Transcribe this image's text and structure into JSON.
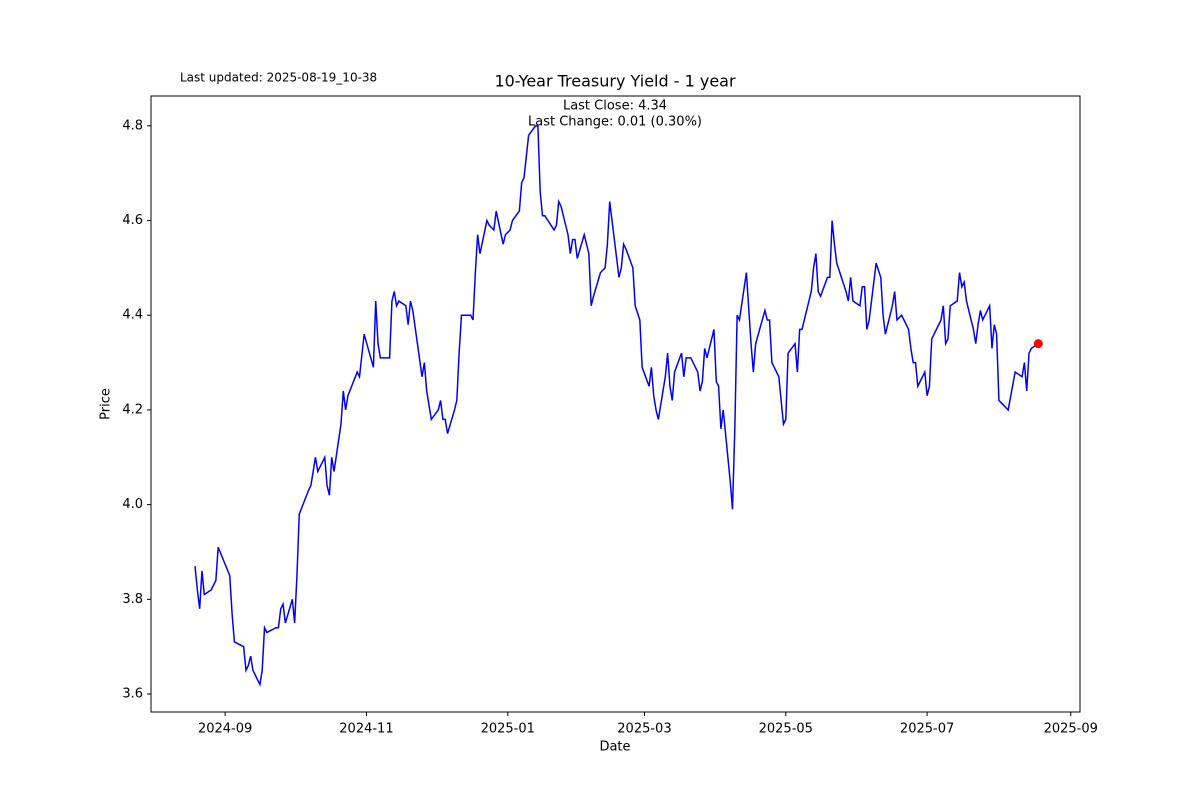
{
  "chart_data": {
    "type": "line",
    "title": "10-Year Treasury Yield - 1 year",
    "last_updated": "Last updated: 2025-08-19_10-38",
    "annotations": [
      "Last Close: 4.34",
      "Last Change: 0.01 (0.30%)"
    ],
    "x_label": "Date",
    "y_label": "Price",
    "x": [
      "2024-08-19",
      "2024-08-20",
      "2024-08-21",
      "2024-08-22",
      "2024-08-23",
      "2024-08-26",
      "2024-08-28",
      "2024-08-29",
      "2024-09-03",
      "2024-09-04",
      "2024-09-05",
      "2024-09-09",
      "2024-09-10",
      "2024-09-11",
      "2024-09-12",
      "2024-09-13",
      "2024-09-16",
      "2024-09-17",
      "2024-09-18",
      "2024-09-19",
      "2024-09-23",
      "2024-09-24",
      "2024-09-25",
      "2024-09-26",
      "2024-09-27",
      "2024-09-30",
      "2024-10-01",
      "2024-10-02",
      "2024-10-03",
      "2024-10-07",
      "2024-10-08",
      "2024-10-10",
      "2024-10-11",
      "2024-10-14",
      "2024-10-15",
      "2024-10-16",
      "2024-10-17",
      "2024-10-18",
      "2024-10-21",
      "2024-10-22",
      "2024-10-23",
      "2024-10-24",
      "2024-10-28",
      "2024-10-29",
      "2024-10-31",
      "2024-11-04",
      "2024-11-05",
      "2024-11-06",
      "2024-11-07",
      "2024-11-11",
      "2024-11-12",
      "2024-11-13",
      "2024-11-14",
      "2024-11-15",
      "2024-11-18",
      "2024-11-19",
      "2024-11-20",
      "2024-11-21",
      "2024-11-25",
      "2024-11-26",
      "2024-11-27",
      "2024-11-29",
      "2024-12-02",
      "2024-12-03",
      "2024-12-04",
      "2024-12-05",
      "2024-12-06",
      "2024-12-09",
      "2024-12-10",
      "2024-12-11",
      "2024-12-12",
      "2024-12-16",
      "2024-12-17",
      "2024-12-18",
      "2024-12-19",
      "2024-12-20",
      "2024-12-23",
      "2024-12-24",
      "2024-12-26",
      "2024-12-27",
      "2024-12-30",
      "2024-12-31",
      "2025-01-02",
      "2025-01-03",
      "2025-01-06",
      "2025-01-07",
      "2025-01-08",
      "2025-01-10",
      "2025-01-13",
      "2025-01-14",
      "2025-01-15",
      "2025-01-16",
      "2025-01-17",
      "2025-01-21",
      "2025-01-22",
      "2025-01-23",
      "2025-01-24",
      "2025-01-27",
      "2025-01-28",
      "2025-01-29",
      "2025-01-30",
      "2025-01-31",
      "2025-02-03",
      "2025-02-04",
      "2025-02-05",
      "2025-02-06",
      "2025-02-07",
      "2025-02-10",
      "2025-02-12",
      "2025-02-13",
      "2025-02-14",
      "2025-02-18",
      "2025-02-19",
      "2025-02-20",
      "2025-02-21",
      "2025-02-24",
      "2025-02-25",
      "2025-02-27",
      "2025-02-28",
      "2025-03-03",
      "2025-03-04",
      "2025-03-05",
      "2025-03-06",
      "2025-03-07",
      "2025-03-10",
      "2025-03-11",
      "2025-03-12",
      "2025-03-13",
      "2025-03-14",
      "2025-03-17",
      "2025-03-18",
      "2025-03-19",
      "2025-03-21",
      "2025-03-24",
      "2025-03-25",
      "2025-03-26",
      "2025-03-27",
      "2025-03-28",
      "2025-03-31",
      "2025-04-01",
      "2025-04-02",
      "2025-04-03",
      "2025-04-04",
      "2025-04-07",
      "2025-04-08",
      "2025-04-09",
      "2025-04-10",
      "2025-04-11",
      "2025-04-14",
      "2025-04-16",
      "2025-04-17",
      "2025-04-18",
      "2025-04-22",
      "2025-04-23",
      "2025-04-24",
      "2025-04-25",
      "2025-04-28",
      "2025-04-29",
      "2025-04-30",
      "2025-05-01",
      "2025-05-02",
      "2025-05-05",
      "2025-05-06",
      "2025-05-07",
      "2025-05-08",
      "2025-05-12",
      "2025-05-13",
      "2025-05-14",
      "2025-05-15",
      "2025-05-16",
      "2025-05-19",
      "2025-05-20",
      "2025-05-21",
      "2025-05-22",
      "2025-05-23",
      "2025-05-27",
      "2025-05-28",
      "2025-05-29",
      "2025-05-30",
      "2025-06-02",
      "2025-06-03",
      "2025-06-04",
      "2025-06-05",
      "2025-06-06",
      "2025-06-09",
      "2025-06-11",
      "2025-06-12",
      "2025-06-13",
      "2025-06-16",
      "2025-06-17",
      "2025-06-18",
      "2025-06-20",
      "2025-06-23",
      "2025-06-24",
      "2025-06-25",
      "2025-06-26",
      "2025-06-27",
      "2025-06-30",
      "2025-07-01",
      "2025-07-02",
      "2025-07-03",
      "2025-07-07",
      "2025-07-08",
      "2025-07-09",
      "2025-07-10",
      "2025-07-11",
      "2025-07-14",
      "2025-07-15",
      "2025-07-16",
      "2025-07-17",
      "2025-07-18",
      "2025-07-21",
      "2025-07-22",
      "2025-07-23",
      "2025-07-24",
      "2025-07-25",
      "2025-07-28",
      "2025-07-29",
      "2025-07-30",
      "2025-07-31",
      "2025-08-01",
      "2025-08-05",
      "2025-08-08",
      "2025-08-11",
      "2025-08-12",
      "2025-08-13",
      "2025-08-14",
      "2025-08-15",
      "2025-08-18"
    ],
    "series": [
      {
        "name": "10-Year Treasury Yield",
        "color": "#0000ff",
        "marker_color": "#ff0000",
        "values": [
          3.87,
          3.82,
          3.78,
          3.86,
          3.81,
          3.82,
          3.84,
          3.91,
          3.85,
          3.77,
          3.71,
          3.7,
          3.65,
          3.66,
          3.68,
          3.65,
          3.62,
          3.65,
          3.74,
          3.73,
          3.74,
          3.74,
          3.78,
          3.79,
          3.75,
          3.8,
          3.75,
          3.85,
          3.98,
          4.03,
          4.04,
          4.1,
          4.07,
          4.1,
          4.04,
          4.02,
          4.1,
          4.07,
          4.17,
          4.24,
          4.2,
          4.23,
          4.28,
          4.27,
          4.36,
          4.29,
          4.43,
          4.34,
          4.31,
          4.31,
          4.43,
          4.45,
          4.42,
          4.43,
          4.42,
          4.38,
          4.43,
          4.41,
          4.27,
          4.3,
          4.24,
          4.18,
          4.2,
          4.22,
          4.18,
          4.18,
          4.15,
          4.2,
          4.22,
          4.32,
          4.4,
          4.4,
          4.39,
          4.49,
          4.57,
          4.53,
          4.6,
          4.59,
          4.58,
          4.62,
          4.55,
          4.57,
          4.58,
          4.6,
          4.62,
          4.68,
          4.69,
          4.78,
          4.8,
          4.8,
          4.66,
          4.61,
          4.61,
          4.58,
          4.59,
          4.64,
          4.63,
          4.57,
          4.53,
          4.56,
          4.56,
          4.52,
          4.57,
          4.55,
          4.53,
          4.42,
          4.44,
          4.49,
          4.5,
          4.55,
          4.64,
          4.48,
          4.5,
          4.55,
          4.54,
          4.5,
          4.42,
          4.39,
          4.29,
          4.25,
          4.29,
          4.23,
          4.2,
          4.18,
          4.27,
          4.32,
          4.25,
          4.22,
          4.28,
          4.32,
          4.27,
          4.31,
          4.31,
          4.28,
          4.24,
          4.26,
          4.33,
          4.31,
          4.37,
          4.26,
          4.25,
          4.16,
          4.2,
          4.05,
          3.99,
          4.16,
          4.4,
          4.39,
          4.49,
          4.34,
          4.28,
          4.34,
          4.41,
          4.39,
          4.39,
          4.3,
          4.27,
          4.22,
          4.17,
          4.18,
          4.32,
          4.34,
          4.28,
          4.37,
          4.37,
          4.45,
          4.5,
          4.53,
          4.45,
          4.44,
          4.48,
          4.48,
          4.6,
          4.55,
          4.51,
          4.45,
          4.43,
          4.48,
          4.43,
          4.42,
          4.46,
          4.46,
          4.37,
          4.39,
          4.51,
          4.48,
          4.4,
          4.36,
          4.42,
          4.45,
          4.39,
          4.4,
          4.37,
          4.33,
          4.3,
          4.3,
          4.25,
          4.28,
          4.23,
          4.25,
          4.35,
          4.39,
          4.42,
          4.34,
          4.35,
          4.42,
          4.43,
          4.49,
          4.46,
          4.47,
          4.43,
          4.37,
          4.34,
          4.38,
          4.41,
          4.39,
          4.42,
          4.33,
          4.38,
          4.36,
          4.22,
          4.2,
          4.28,
          4.27,
          4.3,
          4.24,
          4.32,
          4.33,
          4.34
        ]
      }
    ],
    "xlim": [
      "2024-07-31",
      "2025-09-05"
    ],
    "xticks": [
      {
        "value": "2024-09-01",
        "label": "2024-09"
      },
      {
        "value": "2024-11-01",
        "label": "2024-11"
      },
      {
        "value": "2025-01-01",
        "label": "2025-01"
      },
      {
        "value": "2025-03-01",
        "label": "2025-03"
      },
      {
        "value": "2025-05-01",
        "label": "2025-05"
      },
      {
        "value": "2025-07-01",
        "label": "2025-07"
      },
      {
        "value": "2025-09-01",
        "label": "2025-09"
      }
    ],
    "ylim": [
      3.562,
      4.863
    ],
    "yticks": [
      3.6,
      3.8,
      {
        "value": 4,
        "label": "4.0"
      },
      4.2,
      4.4,
      4.6,
      4.8
    ],
    "grid": false
  }
}
